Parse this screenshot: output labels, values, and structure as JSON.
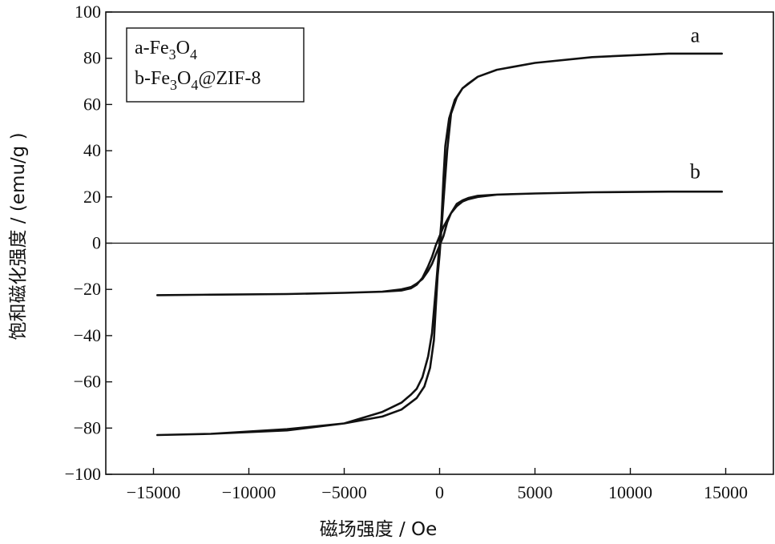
{
  "chart_data": {
    "type": "line",
    "title": "",
    "xlabel": "磁场强度 / Oe",
    "ylabel": "饱和磁化强度 / (emu/g )",
    "xlim": [
      -17500,
      17500
    ],
    "ylim": [
      -100,
      100
    ],
    "x_ticks": [
      -15000,
      -10000,
      -5000,
      0,
      5000,
      10000,
      15000
    ],
    "x_tick_labels": [
      "−15000",
      "−10000",
      "−5000",
      "0",
      "5000",
      "10000",
      "15000"
    ],
    "y_ticks": [
      -100,
      -80,
      -60,
      -40,
      -20,
      0,
      20,
      40,
      60,
      80,
      100
    ],
    "y_tick_labels": [
      "−100",
      "−80",
      "−60",
      "−40",
      "−20",
      "0",
      "20",
      "40",
      "60",
      "80",
      "100"
    ],
    "grid": false,
    "zero_line": true,
    "legend": {
      "placement": "top-left",
      "entries": [
        {
          "prefix": "a-Fe",
          "sub1": "3",
          "mid": "O",
          "sub2": "4",
          "suffix": ""
        },
        {
          "prefix": "b-Fe",
          "sub1": "3",
          "mid": "O",
          "sub2": "4",
          "suffix": "@ZIF-8"
        }
      ]
    },
    "series": [
      {
        "name": "a",
        "x": [
          -14800,
          -12000,
          -8000,
          -5000,
          -3000,
          -2000,
          -1500,
          -1200,
          -900,
          -600,
          -400,
          -200,
          0,
          100,
          200,
          300,
          500,
          800,
          1200,
          2000,
          3000,
          5000,
          8000,
          12000,
          14800,
          12000,
          8000,
          5000,
          3000,
          2000,
          1500,
          1200,
          900,
          600,
          400,
          200,
          0,
          -100,
          -200,
          -300,
          -500,
          -800,
          -1200,
          -2000,
          -3000,
          -5000,
          -8000,
          -12000,
          -14800
        ],
        "y": [
          -83,
          -82.5,
          -81,
          -78,
          -73,
          -69,
          -65.5,
          -63,
          -58,
          -49,
          -39,
          -20,
          0,
          10,
          28,
          42,
          54,
          62,
          67,
          72,
          75,
          78,
          80.5,
          82,
          82,
          82,
          80.5,
          78,
          75,
          72,
          69,
          67,
          63,
          56,
          40,
          18,
          -5,
          -14,
          -28,
          -42,
          -54,
          -62,
          -67,
          -72,
          -75,
          -78,
          -80.5,
          -82.5,
          -83
        ]
      },
      {
        "name": "b",
        "x": [
          -14800,
          -12000,
          -8000,
          -5000,
          -3000,
          -2000,
          -1500,
          -1200,
          -900,
          -600,
          -400,
          -200,
          0,
          200,
          400,
          600,
          900,
          1200,
          1500,
          2000,
          3000,
          5000,
          8000,
          12000,
          14800,
          12000,
          8000,
          5000,
          3000,
          2000,
          1500,
          1200,
          900,
          600,
          400,
          200,
          0,
          -200,
          -400,
          -600,
          -900,
          -1200,
          -1500,
          -2000,
          -3000,
          -5000,
          -8000,
          -12000,
          -14800
        ],
        "y": [
          -22.5,
          -22.3,
          -22,
          -21.5,
          -21,
          -20.5,
          -19.5,
          -18,
          -15,
          -10,
          -6,
          -1,
          3,
          7,
          10,
          13,
          16,
          18,
          19,
          20,
          21,
          21.5,
          22,
          22.3,
          22.3,
          22.3,
          22,
          21.5,
          21,
          20.5,
          19.5,
          18.5,
          17,
          13,
          9,
          3,
          -1,
          -5,
          -9,
          -12,
          -15.5,
          -17.5,
          -19,
          -20,
          -21,
          -21.5,
          -22,
          -22.3,
          -22.5
        ]
      }
    ],
    "curve_labels": [
      {
        "text": "a",
        "x": 13400,
        "y": 87
      },
      {
        "text": "b",
        "x": 13400,
        "y": 28
      }
    ]
  }
}
